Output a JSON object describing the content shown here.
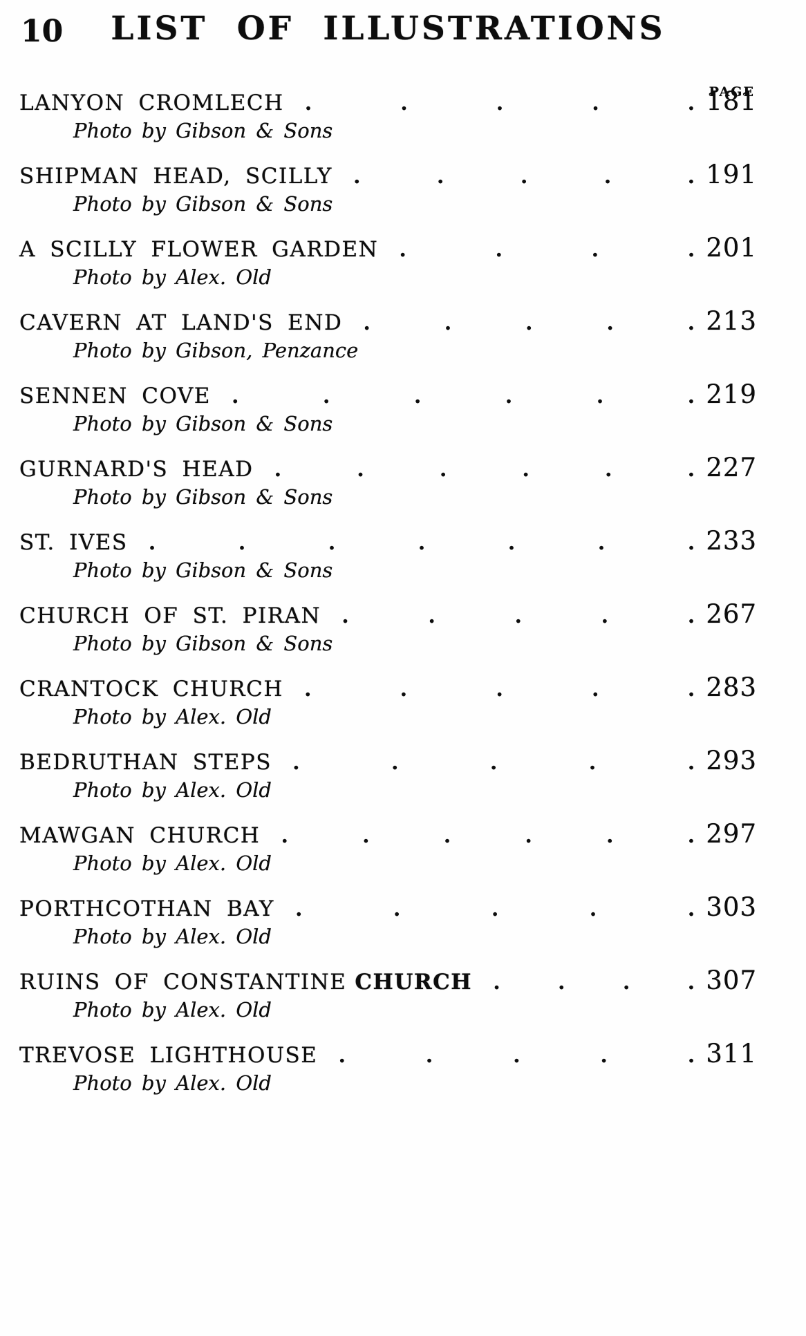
{
  "page": {
    "number": "10",
    "heading": "LIST OF ILLUSTRATIONS",
    "column_header": "PAGE"
  },
  "entries": [
    {
      "title": "LANYON CROMLECH",
      "title_bold": "",
      "leader_dots": 5,
      "page": "181",
      "credit": "Photo by Gibson & Sons"
    },
    {
      "title": "SHIPMAN HEAD, SCILLY",
      "title_bold": "",
      "leader_dots": 5,
      "page": "191",
      "credit": "Photo by Gibson & Sons"
    },
    {
      "title": "A SCILLY FLOWER GARDEN",
      "title_bold": "",
      "leader_dots": 4,
      "page": "201",
      "credit": "Photo by Alex. Old"
    },
    {
      "title": "CAVERN AT LAND'S END",
      "title_bold": "",
      "leader_dots": 5,
      "page": "213",
      "credit": "Photo by Gibson, Penzance"
    },
    {
      "title": "SENNEN COVE",
      "title_bold": "",
      "leader_dots": 6,
      "page": "219",
      "credit": "Photo by Gibson & Sons"
    },
    {
      "title": "GURNARD'S HEAD",
      "title_bold": "",
      "leader_dots": 6,
      "page": "227",
      "credit": "Photo by Gibson & Sons"
    },
    {
      "title": "ST. IVES",
      "title_bold": "",
      "leader_dots": 7,
      "page": "233",
      "credit": "Photo by Gibson & Sons"
    },
    {
      "title": "CHURCH OF ST. PIRAN",
      "title_bold": "",
      "leader_dots": 5,
      "page": "267",
      "credit": "Photo by Gibson & Sons"
    },
    {
      "title": "CRANTOCK CHURCH",
      "title_bold": "",
      "leader_dots": 5,
      "page": "283",
      "credit": "Photo by Alex. Old"
    },
    {
      "title": "BEDRUTHAN STEPS",
      "title_bold": "",
      "leader_dots": 5,
      "page": "293",
      "credit": "Photo by Alex. Old"
    },
    {
      "title": "MAWGAN CHURCH",
      "title_bold": "",
      "leader_dots": 6,
      "page": "297",
      "credit": "Photo by Alex. Old"
    },
    {
      "title": "PORTHCOTHAN BAY",
      "title_bold": "",
      "leader_dots": 5,
      "page": "303",
      "credit": "Photo by Alex. Old"
    },
    {
      "title": "RUINS OF CONSTANTINE",
      "title_bold": "CHURCH",
      "leader_dots": 4,
      "page": "307",
      "credit": "Photo by Alex. Old"
    },
    {
      "title": "TREVOSE LIGHTHOUSE",
      "title_bold": "",
      "leader_dots": 5,
      "page": "311",
      "credit": "Photo by Alex. Old"
    }
  ],
  "colors": {
    "ink": "#0d0d0d",
    "paper": "#fefefe"
  }
}
